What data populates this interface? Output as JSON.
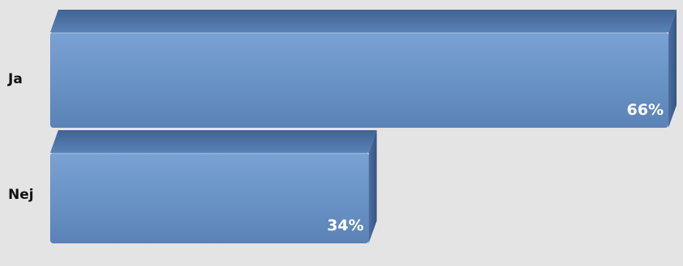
{
  "chart_data": {
    "type": "bar",
    "orientation": "horizontal",
    "style": "3d",
    "categories": [
      "Ja",
      "Nej"
    ],
    "values": [
      66,
      34
    ],
    "value_labels": [
      "66%",
      "34%"
    ],
    "unit": "%",
    "xlim": [
      0,
      66
    ],
    "grid": false,
    "legend": "none",
    "title": "",
    "xlabel": "",
    "ylabel": ""
  },
  "colors": {
    "background": "#e4e4e4",
    "bar_front": "#6a93c6",
    "bar_top": "#4f76a8",
    "bar_side": "#3c5e8c",
    "label_text": "#111111",
    "value_text": "#ffffff"
  }
}
